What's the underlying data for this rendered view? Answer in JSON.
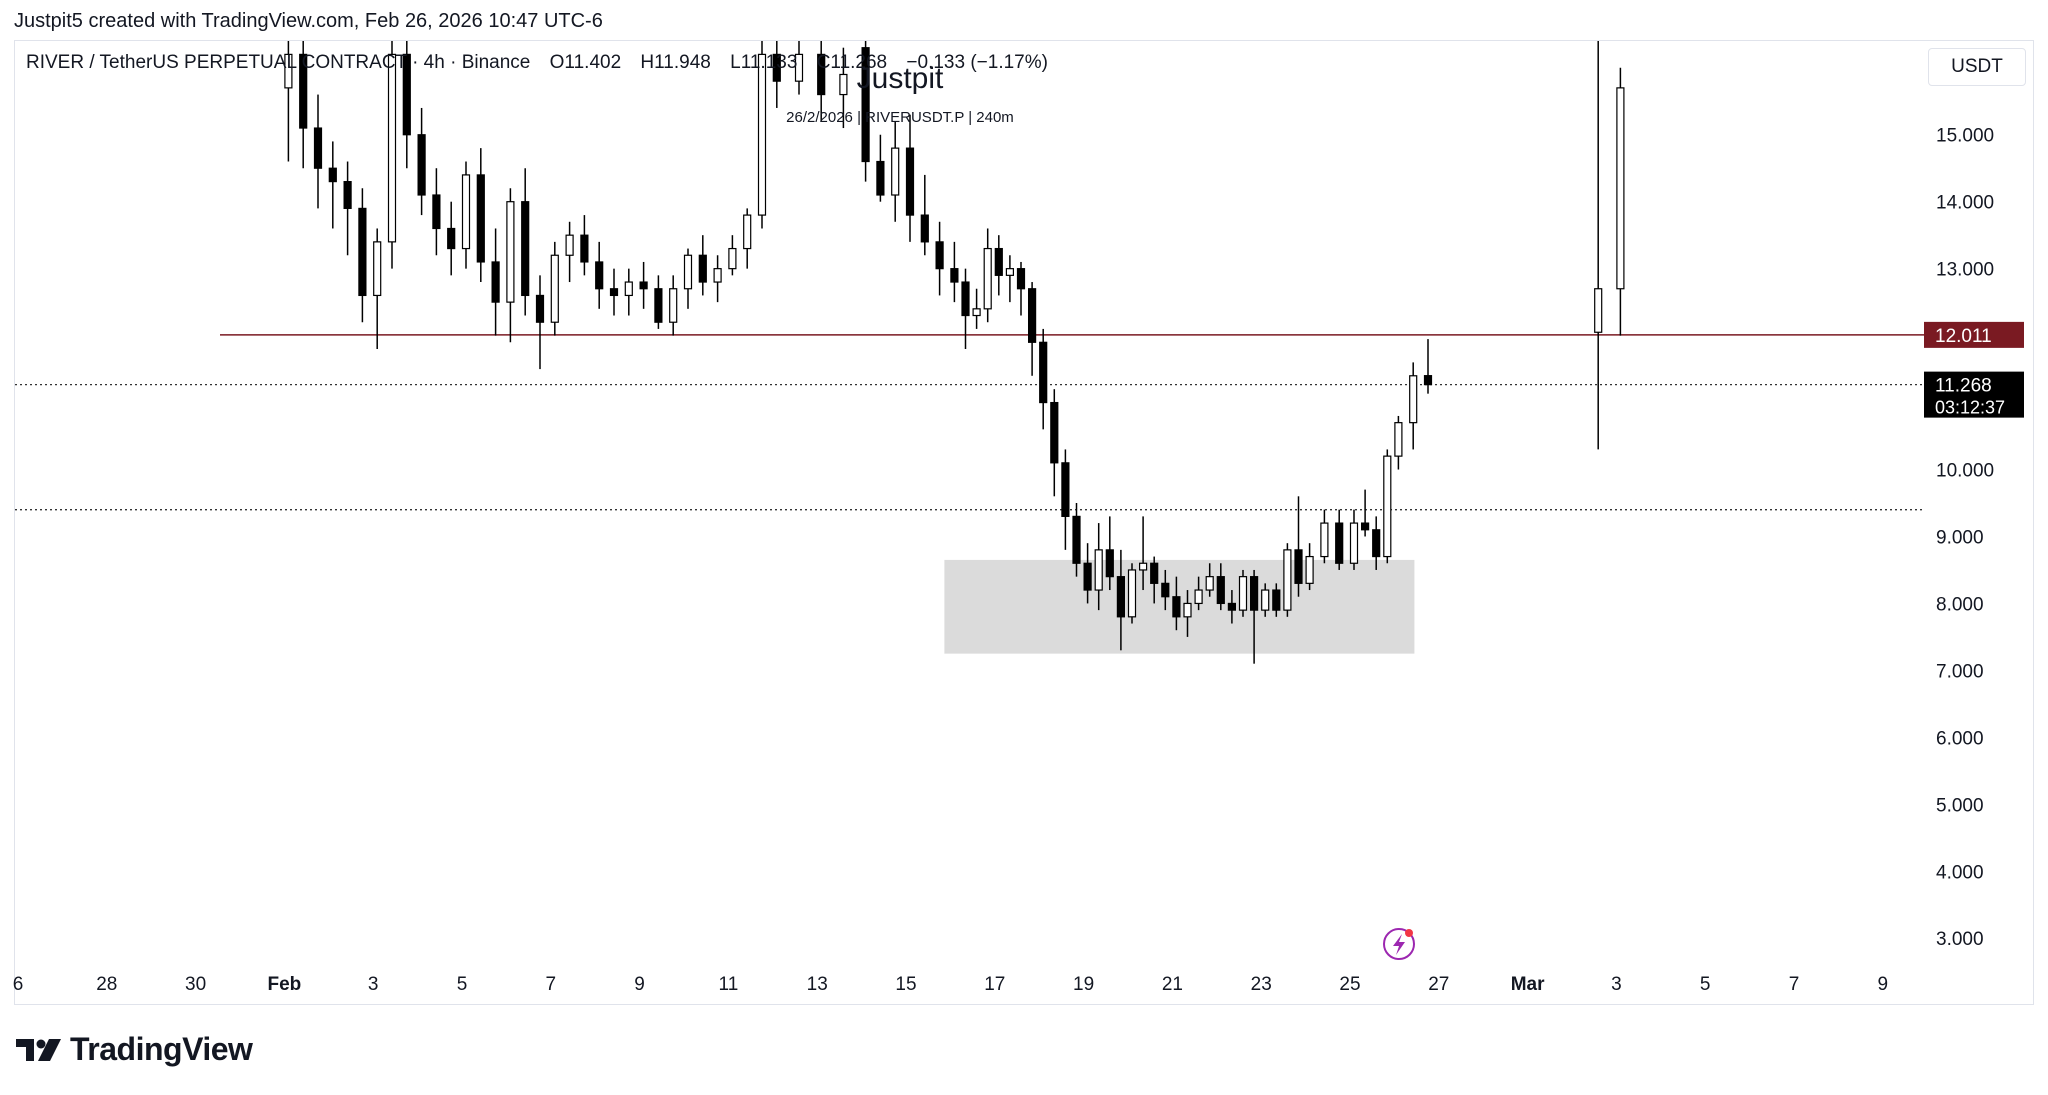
{
  "attribution": "Justpit5 created with TradingView.com, Feb 26, 2026 10:47 UTC-6",
  "legend": {
    "symbol": "RIVER / TetherUS PERPETUAL CONTRACT · 4h · Binance",
    "open": "O11.402",
    "high": "H11.948",
    "low": "L11.133",
    "close": "C11.268",
    "change": "−0.133 (−1.17%)"
  },
  "currency_label": "USDT",
  "watermark": {
    "title": "Justpit",
    "subtitle": "26/2/2026 | RIVERUSDT.P | 240m"
  },
  "brand": "TradingView",
  "colors": {
    "resistance": "#7a1a22",
    "price_label_bg": "#000000",
    "zone": "#d9d9d9",
    "candle": "#000000",
    "alert_icon": "#9c27b0"
  },
  "chart_data": {
    "type": "candlestick",
    "title": "",
    "interval": "4h",
    "y_axis": {
      "position": "right",
      "ticks": [
        "15.000",
        "14.000",
        "13.000",
        "10.000",
        "9.000",
        "8.000",
        "7.000",
        "6.000",
        "5.000",
        "4.000",
        "3.000"
      ],
      "ylim": [
        2.6,
        16.4
      ]
    },
    "x_axis": {
      "ticks": [
        "6",
        "28",
        "30",
        "Feb",
        "3",
        "5",
        "7",
        "9",
        "11",
        "13",
        "15",
        "17",
        "19",
        "21",
        "23",
        "25",
        "27",
        "Mar",
        "3",
        "5",
        "7",
        "9"
      ],
      "bold_ticks": [
        "Feb",
        "Mar"
      ]
    },
    "horizontal_lines": [
      {
        "name": "resistance",
        "price": 12.011,
        "label": "12.011",
        "style": "solid"
      },
      {
        "name": "last-price",
        "price": 11.268,
        "label": "11.268",
        "sublabel": "03:12:37",
        "style": "dotted"
      },
      {
        "name": "level",
        "price": 9.4,
        "style": "dotted"
      }
    ],
    "zones": [
      {
        "name": "accumulation",
        "from_date": "Feb 16",
        "to_date": "Feb 26",
        "low": 7.25,
        "high": 8.65
      }
    ],
    "series": [
      {
        "date": "Jan 31 (early)",
        "values": [
          12.05,
          16.6,
          10.3,
          12.7
        ]
      },
      {
        "date": "Jan 31",
        "values": [
          12.7,
          16.0,
          12.0,
          15.7
        ]
      },
      {
        "date": "Feb 1",
        "values": [
          15.7,
          16.7,
          14.6,
          16.2
        ]
      },
      {
        "date": "Feb 1",
        "values": [
          16.2,
          16.7,
          14.5,
          15.1
        ]
      },
      {
        "date": "Feb 1",
        "values": [
          15.1,
          15.6,
          13.9,
          14.5
        ]
      },
      {
        "date": "Feb 2",
        "values": [
          14.5,
          14.9,
          13.6,
          14.3
        ]
      },
      {
        "date": "Feb 2",
        "values": [
          14.3,
          14.6,
          13.2,
          13.9
        ]
      },
      {
        "date": "Feb 2",
        "values": [
          13.9,
          14.2,
          12.2,
          12.6
        ]
      },
      {
        "date": "Feb 3",
        "values": [
          12.6,
          13.6,
          11.8,
          13.4
        ]
      },
      {
        "date": "Feb 3",
        "values": [
          13.4,
          16.6,
          13.0,
          16.2
        ]
      },
      {
        "date": "Feb 3",
        "values": [
          16.2,
          16.7,
          14.5,
          15.0
        ]
      },
      {
        "date": "Feb 4",
        "values": [
          15.0,
          15.4,
          13.8,
          14.1
        ]
      },
      {
        "date": "Feb 4",
        "values": [
          14.1,
          14.5,
          13.2,
          13.6
        ]
      },
      {
        "date": "Feb 4",
        "values": [
          13.6,
          14.0,
          12.9,
          13.3
        ]
      },
      {
        "date": "Feb 5",
        "values": [
          13.3,
          14.6,
          13.0,
          14.4
        ]
      },
      {
        "date": "Feb 5",
        "values": [
          14.4,
          14.8,
          12.8,
          13.1
        ]
      },
      {
        "date": "Feb 5",
        "values": [
          13.1,
          13.6,
          12.0,
          12.5
        ]
      },
      {
        "date": "Feb 6",
        "values": [
          12.5,
          14.2,
          11.9,
          14.0
        ]
      },
      {
        "date": "Feb 6",
        "values": [
          14.0,
          14.5,
          12.3,
          12.6
        ]
      },
      {
        "date": "Feb 6",
        "values": [
          12.6,
          12.9,
          11.5,
          12.2
        ]
      },
      {
        "date": "Feb 7",
        "values": [
          12.2,
          13.4,
          12.0,
          13.2
        ]
      },
      {
        "date": "Feb 7",
        "values": [
          13.2,
          13.7,
          12.8,
          13.5
        ]
      },
      {
        "date": "Feb 7",
        "values": [
          13.5,
          13.8,
          12.9,
          13.1
        ]
      },
      {
        "date": "Feb 8",
        "values": [
          13.1,
          13.4,
          12.4,
          12.7
        ]
      },
      {
        "date": "Feb 8",
        "values": [
          12.7,
          13.0,
          12.3,
          12.6
        ]
      },
      {
        "date": "Feb 8",
        "values": [
          12.6,
          13.0,
          12.3,
          12.8
        ]
      },
      {
        "date": "Feb 9",
        "values": [
          12.8,
          13.1,
          12.4,
          12.7
        ]
      },
      {
        "date": "Feb 9",
        "values": [
          12.7,
          12.9,
          12.1,
          12.2
        ]
      },
      {
        "date": "Feb 9",
        "values": [
          12.2,
          12.9,
          12.0,
          12.7
        ]
      },
      {
        "date": "Feb 10",
        "values": [
          12.7,
          13.3,
          12.4,
          13.2
        ]
      },
      {
        "date": "Feb 10",
        "values": [
          13.2,
          13.5,
          12.6,
          12.8
        ]
      },
      {
        "date": "Feb 10",
        "values": [
          12.8,
          13.2,
          12.5,
          13.0
        ]
      },
      {
        "date": "Feb 11",
        "values": [
          13.0,
          13.5,
          12.9,
          13.3
        ]
      },
      {
        "date": "Feb 11",
        "values": [
          13.3,
          13.9,
          13.0,
          13.8
        ]
      },
      {
        "date": "Feb 11",
        "values": [
          13.8,
          16.6,
          13.6,
          16.2
        ]
      },
      {
        "date": "Feb 12",
        "values": [
          16.2,
          16.7,
          15.4,
          15.8
        ]
      },
      {
        "date": "Feb 12",
        "values": [
          15.8,
          16.6,
          15.6,
          16.2
        ]
      },
      {
        "date": "Feb 13",
        "values": [
          16.2,
          16.7,
          15.2,
          15.6
        ]
      },
      {
        "date": "Feb 13",
        "values": [
          15.6,
          16.3,
          15.1,
          15.9
        ]
      },
      {
        "date": "Feb 14",
        "values": [
          16.3,
          16.7,
          14.3,
          14.6
        ]
      },
      {
        "date": "Feb 14",
        "values": [
          14.6,
          15.0,
          14.0,
          14.1
        ]
      },
      {
        "date": "Feb 14",
        "values": [
          14.1,
          15.2,
          13.7,
          14.8
        ]
      },
      {
        "date": "Feb 15",
        "values": [
          14.8,
          15.3,
          13.4,
          13.8
        ]
      },
      {
        "date": "Feb 15",
        "values": [
          13.8,
          14.4,
          13.2,
          13.4
        ]
      },
      {
        "date": "Feb 15",
        "values": [
          13.4,
          13.7,
          12.6,
          13.0
        ]
      },
      {
        "date": "Feb 16",
        "values": [
          13.0,
          13.4,
          12.5,
          12.8
        ]
      },
      {
        "date": "Feb 16",
        "values": [
          12.8,
          13.0,
          11.8,
          12.3
        ]
      },
      {
        "date": "Feb 16",
        "values": [
          12.3,
          12.7,
          12.1,
          12.4
        ]
      },
      {
        "date": "Feb 16",
        "values": [
          12.4,
          13.6,
          12.2,
          13.3
        ]
      },
      {
        "date": "Feb 17",
        "values": [
          13.3,
          13.5,
          12.6,
          12.9
        ]
      },
      {
        "date": "Feb 17",
        "values": [
          12.9,
          13.2,
          12.5,
          13.0
        ]
      },
      {
        "date": "Feb 17",
        "values": [
          13.0,
          13.1,
          12.3,
          12.7
        ]
      },
      {
        "date": "Feb 17",
        "values": [
          12.7,
          12.8,
          11.4,
          11.9
        ]
      },
      {
        "date": "Feb 18",
        "values": [
          11.9,
          12.1,
          10.6,
          11.0
        ]
      },
      {
        "date": "Feb 18",
        "values": [
          11.0,
          11.2,
          9.6,
          10.1
        ]
      },
      {
        "date": "Feb 18",
        "values": [
          10.1,
          10.3,
          8.8,
          9.3
        ]
      },
      {
        "date": "Feb 18",
        "values": [
          9.3,
          9.5,
          8.4,
          8.6
        ]
      },
      {
        "date": "Feb 19",
        "values": [
          8.6,
          8.9,
          8.0,
          8.2
        ]
      },
      {
        "date": "Feb 19",
        "values": [
          8.2,
          9.2,
          7.9,
          8.8
        ]
      },
      {
        "date": "Feb 19",
        "values": [
          8.8,
          9.3,
          8.2,
          8.4
        ]
      },
      {
        "date": "Feb 19",
        "values": [
          8.4,
          8.8,
          7.3,
          7.8
        ]
      },
      {
        "date": "Feb 20",
        "values": [
          7.8,
          8.6,
          7.7,
          8.5
        ]
      },
      {
        "date": "Feb 20",
        "values": [
          8.5,
          9.3,
          8.2,
          8.6
        ]
      },
      {
        "date": "Feb 20",
        "values": [
          8.6,
          8.7,
          8.0,
          8.3
        ]
      },
      {
        "date": "Feb 20",
        "values": [
          8.3,
          8.5,
          7.9,
          8.1
        ]
      },
      {
        "date": "Feb 21",
        "values": [
          8.1,
          8.4,
          7.6,
          7.8
        ]
      },
      {
        "date": "Feb 21",
        "values": [
          7.8,
          8.2,
          7.5,
          8.0
        ]
      },
      {
        "date": "Feb 21",
        "values": [
          8.0,
          8.4,
          7.9,
          8.2
        ]
      },
      {
        "date": "Feb 21",
        "values": [
          8.2,
          8.6,
          8.1,
          8.4
        ]
      },
      {
        "date": "Feb 22",
        "values": [
          8.4,
          8.6,
          7.9,
          8.0
        ]
      },
      {
        "date": "Feb 22",
        "values": [
          8.0,
          8.2,
          7.7,
          7.9
        ]
      },
      {
        "date": "Feb 22",
        "values": [
          7.9,
          8.5,
          7.8,
          8.4
        ]
      },
      {
        "date": "Feb 22",
        "values": [
          8.4,
          8.5,
          7.1,
          7.9
        ]
      },
      {
        "date": "Feb 23",
        "values": [
          7.9,
          8.3,
          7.8,
          8.2
        ]
      },
      {
        "date": "Feb 23",
        "values": [
          8.2,
          8.3,
          7.8,
          7.9
        ]
      },
      {
        "date": "Feb 23",
        "values": [
          7.9,
          8.9,
          7.8,
          8.8
        ]
      },
      {
        "date": "Feb 23",
        "values": [
          8.8,
          9.6,
          8.1,
          8.3
        ]
      },
      {
        "date": "Feb 24",
        "values": [
          8.3,
          8.9,
          8.2,
          8.7
        ]
      },
      {
        "date": "Feb 24",
        "values": [
          8.7,
          9.4,
          8.6,
          9.2
        ]
      },
      {
        "date": "Feb 24",
        "values": [
          9.2,
          9.4,
          8.5,
          8.6
        ]
      },
      {
        "date": "Feb 25",
        "values": [
          8.6,
          9.4,
          8.5,
          9.2
        ]
      },
      {
        "date": "Feb 25",
        "values": [
          9.2,
          9.7,
          9.0,
          9.1
        ]
      },
      {
        "date": "Feb 25",
        "values": [
          9.1,
          9.3,
          8.5,
          8.7
        ]
      },
      {
        "date": "Feb 25",
        "values": [
          8.7,
          10.3,
          8.6,
          10.2
        ]
      },
      {
        "date": "Feb 26",
        "values": [
          10.2,
          10.8,
          10.0,
          10.7
        ]
      },
      {
        "date": "Feb 26",
        "values": [
          10.7,
          11.6,
          10.3,
          11.4
        ]
      },
      {
        "date": "Feb 26",
        "values": [
          11.402,
          11.948,
          11.133,
          11.268
        ]
      }
    ]
  }
}
